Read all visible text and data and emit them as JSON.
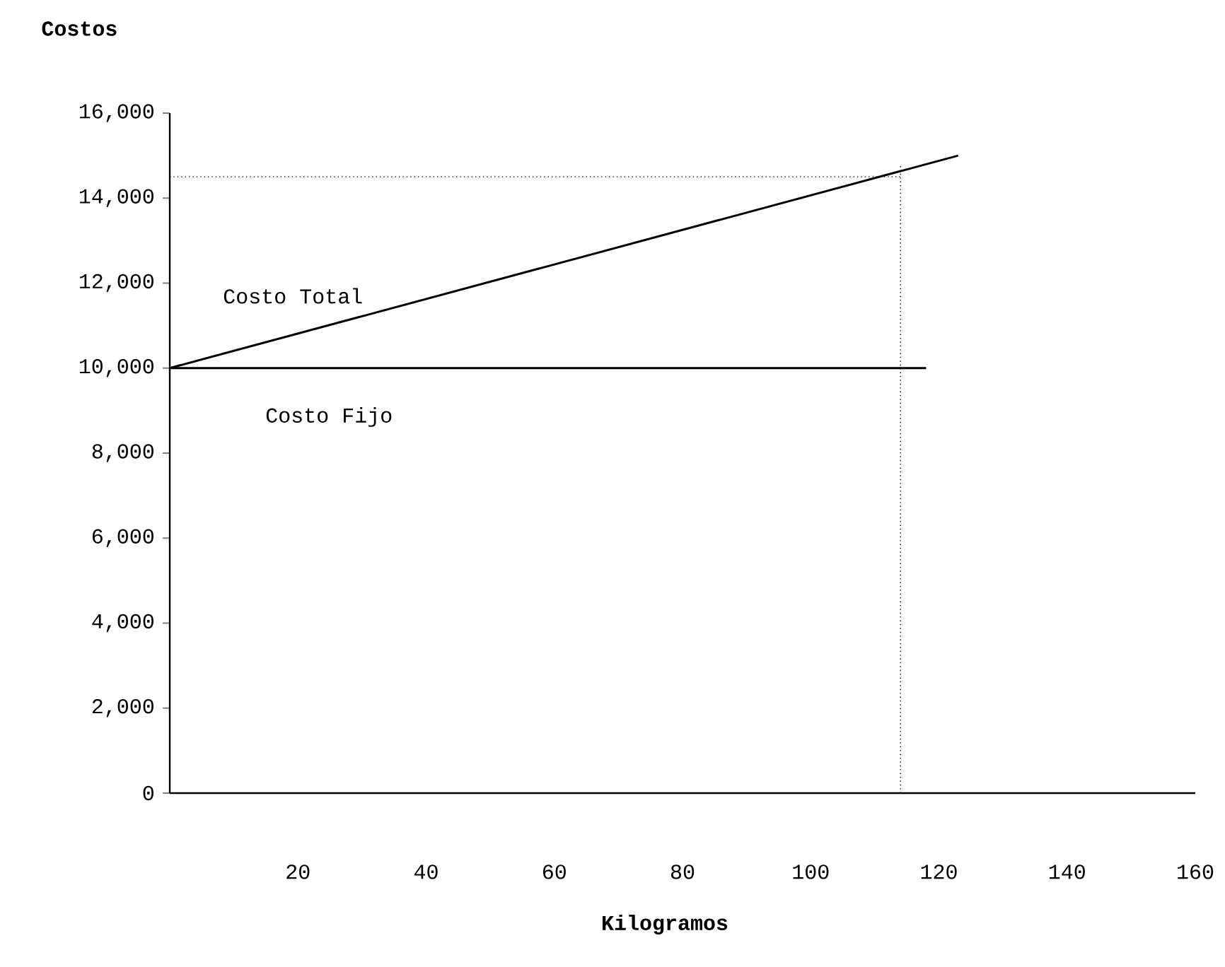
{
  "chart_data": {
    "type": "line",
    "xlabel": "Kilogramos",
    "ylabel": "Costos",
    "series": [
      {
        "name": "Costo Total",
        "color": "#000000",
        "x": [
          0,
          123
        ],
        "values": [
          10000,
          15000
        ]
      },
      {
        "name": "Costo Fijo",
        "color": "#000000",
        "x": [
          0,
          118
        ],
        "values": [
          10000,
          10000
        ]
      }
    ],
    "xlim": [
      0,
      160
    ],
    "ylim": [
      0,
      16000
    ],
    "xticks": [
      20,
      40,
      60,
      80,
      100,
      120,
      140,
      160
    ],
    "yticks": [
      0,
      {
        "value": 2000,
        "label": "2,000"
      },
      {
        "value": 4000,
        "label": "4,000"
      },
      {
        "value": 6000,
        "label": "6,000"
      },
      {
        "value": 8000,
        "label": "8,000"
      },
      {
        "value": 10000,
        "label": "10,000"
      },
      {
        "value": 12000,
        "label": "12,000"
      },
      {
        "value": 14000,
        "label": "14,000"
      },
      {
        "value": 16000,
        "label": "16,000"
      }
    ],
    "ref_lines": [
      {
        "axis": "x",
        "value": 114,
        "line_style": "dotted",
        "color": "#000000"
      },
      {
        "axis": "y",
        "value": 14500,
        "line_style": "dotted",
        "color": "#000000"
      }
    ],
    "grid": false,
    "legend": false,
    "marker": "none",
    "line_style": "solid"
  }
}
